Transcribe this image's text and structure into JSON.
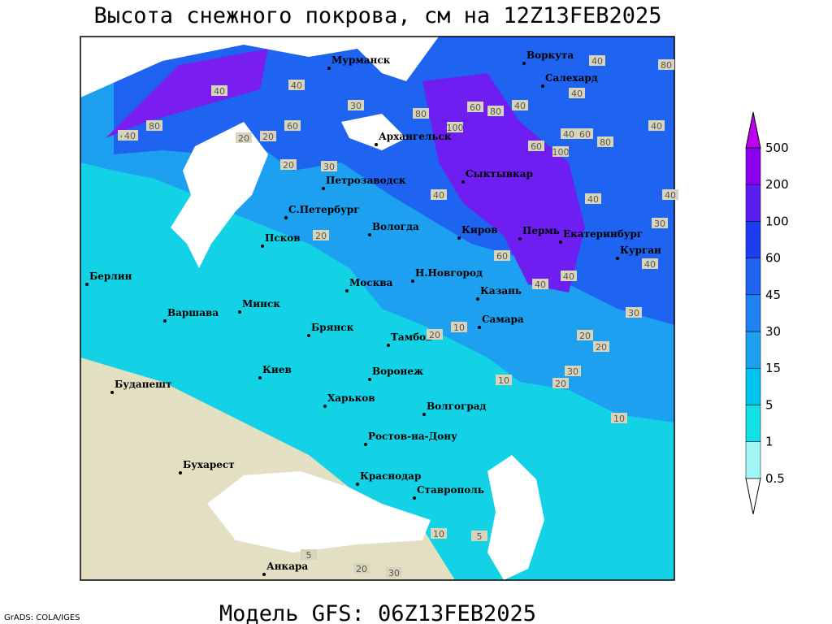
{
  "title": "Высота снежного покрова, см на 12Z13FEB2025",
  "footer": "Модель GFS: 06Z13FEB2025",
  "credit": "GrADS: COLA/IGES",
  "cities": [
    "Мурманск",
    "Воркута",
    "Салехард",
    "Архангельск",
    "Сыктывкар",
    "Петрозаводск",
    "С.Петербург",
    "Вологда",
    "Киров",
    "Пермь",
    "Екатеринбург",
    "Курган",
    "Псков",
    "Берлин",
    "Н.Новгород",
    "Казань",
    "Москва",
    "Минск",
    "Варшава",
    "Брянск",
    "Тамбов",
    "Самара",
    "Киев",
    "Воронеж",
    "Будапешт",
    "Харьков",
    "Волгоград",
    "Ростов-на-Дону",
    "Бухарест",
    "Краснодар",
    "Ставрополь",
    "Анкара"
  ],
  "contour_labels": [
    40,
    80,
    40,
    40,
    20,
    30,
    80,
    60,
    20,
    40,
    30,
    20,
    20,
    40,
    80,
    100,
    60,
    40,
    60,
    40,
    100,
    80,
    60,
    40,
    40,
    60,
    40,
    40,
    30,
    20,
    40,
    40,
    30,
    20,
    10,
    20,
    10,
    30,
    20,
    10,
    5,
    5,
    10,
    20,
    30,
    40,
    80,
    40
  ],
  "legend": {
    "levels": [
      0.5,
      1,
      5,
      15,
      30,
      45,
      60,
      100,
      200,
      500
    ],
    "colors": [
      "#ffffff",
      "#a0f5f5",
      "#14e1e6",
      "#00c3f0",
      "#1ea0f0",
      "#1e82f0",
      "#1e64f0",
      "#1e3cf0",
      "#5a1ef0",
      "#8c00f0",
      "#be00f0"
    ]
  }
}
